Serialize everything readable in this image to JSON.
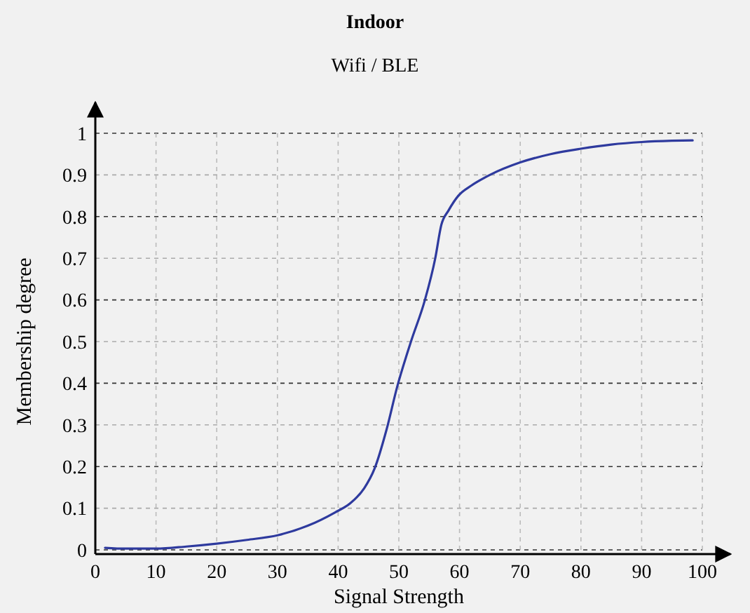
{
  "chart_data": {
    "type": "line",
    "title": "Indoor",
    "subtitle": "Wifi / BLE",
    "xlabel": "Signal Strength",
    "ylabel": "Membership degree",
    "x": [
      1.6,
      5,
      10,
      15,
      20,
      25,
      30,
      35,
      39.5,
      42,
      44.3,
      46,
      48,
      49.7,
      52,
      54.3,
      56,
      57,
      58.2,
      59.8,
      62,
      65,
      70,
      75,
      80,
      85,
      90,
      95,
      98.4
    ],
    "series": [
      {
        "color": "#2e3a9e",
        "values": [
          0.005,
          0.003,
          0.003,
          0.008,
          0.015,
          0.024,
          0.035,
          0.058,
          0.09,
          0.112,
          0.148,
          0.195,
          0.29,
          0.39,
          0.5,
          0.6,
          0.7,
          0.78,
          0.815,
          0.85,
          0.875,
          0.9,
          0.93,
          0.95,
          0.963,
          0.973,
          0.979,
          0.982,
          0.983
        ]
      }
    ],
    "xlim": [
      0,
      100
    ],
    "ylim": [
      0,
      1
    ],
    "xticks": [
      0,
      10,
      20,
      30,
      40,
      50,
      60,
      70,
      80,
      90,
      100
    ],
    "yticks": [
      0,
      0.1,
      0.2,
      0.3,
      0.4,
      0.5,
      0.6,
      0.7,
      0.8,
      0.9,
      1
    ],
    "grid": true,
    "line_style": "solid",
    "marker": "none"
  }
}
